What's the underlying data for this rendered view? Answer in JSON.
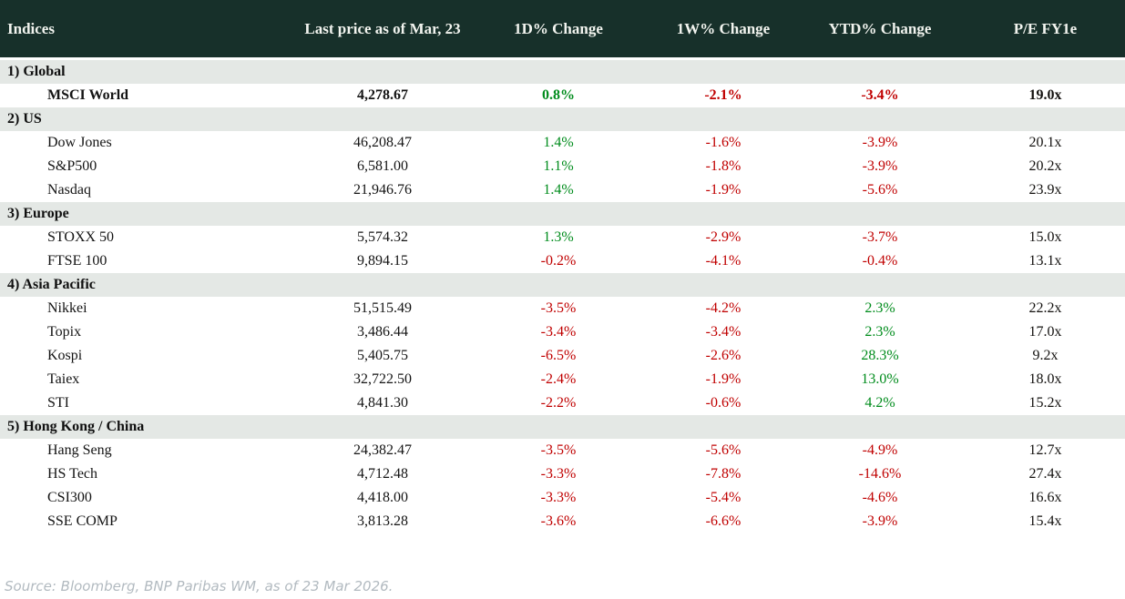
{
  "table": {
    "columns": [
      "Indices",
      "Last price as of Mar, 23",
      "1D% Change",
      "1W% Change",
      "YTD% Change",
      "P/E FY1e"
    ],
    "sections": [
      {
        "label": "1) Global",
        "rows": [
          {
            "name": "MSCI World",
            "price": "4,278.67",
            "d1": "0.8%",
            "w1": "-2.1%",
            "ytd": "-3.4%",
            "pe": "19.0x",
            "bold": true
          }
        ]
      },
      {
        "label": "2) US",
        "rows": [
          {
            "name": "Dow Jones",
            "price": "46,208.47",
            "d1": "1.4%",
            "w1": "-1.6%",
            "ytd": "-3.9%",
            "pe": "20.1x",
            "bold": false
          },
          {
            "name": "S&P500",
            "price": "6,581.00",
            "d1": "1.1%",
            "w1": "-1.8%",
            "ytd": "-3.9%",
            "pe": "20.2x",
            "bold": false
          },
          {
            "name": "Nasdaq",
            "price": "21,946.76",
            "d1": "1.4%",
            "w1": "-1.9%",
            "ytd": "-5.6%",
            "pe": "23.9x",
            "bold": false
          }
        ]
      },
      {
        "label": "3) Europe",
        "rows": [
          {
            "name": "STOXX 50",
            "price": "5,574.32",
            "d1": "1.3%",
            "w1": "-2.9%",
            "ytd": "-3.7%",
            "pe": "15.0x",
            "bold": false
          },
          {
            "name": "FTSE 100",
            "price": "9,894.15",
            "d1": "-0.2%",
            "w1": "-4.1%",
            "ytd": "-0.4%",
            "pe": "13.1x",
            "bold": false
          }
        ]
      },
      {
        "label": "4) Asia Pacific",
        "rows": [
          {
            "name": "Nikkei",
            "price": "51,515.49",
            "d1": "-3.5%",
            "w1": "-4.2%",
            "ytd": "2.3%",
            "pe": "22.2x",
            "bold": false
          },
          {
            "name": "Topix",
            "price": "3,486.44",
            "d1": "-3.4%",
            "w1": "-3.4%",
            "ytd": "2.3%",
            "pe": "17.0x",
            "bold": false
          },
          {
            "name": "Kospi",
            "price": "5,405.75",
            "d1": "-6.5%",
            "w1": "-2.6%",
            "ytd": "28.3%",
            "pe": "9.2x",
            "bold": false
          },
          {
            "name": "Taiex",
            "price": "32,722.50",
            "d1": "-2.4%",
            "w1": "-1.9%",
            "ytd": "13.0%",
            "pe": "18.0x",
            "bold": false
          },
          {
            "name": "STI",
            "price": "4,841.30",
            "d1": "-2.2%",
            "w1": "-0.6%",
            "ytd": "4.2%",
            "pe": "15.2x",
            "bold": false
          }
        ]
      },
      {
        "label": "5) Hong Kong / China",
        "rows": [
          {
            "name": "Hang Seng",
            "price": "24,382.47",
            "d1": "-3.5%",
            "w1": "-5.6%",
            "ytd": "-4.9%",
            "pe": "12.7x",
            "bold": false
          },
          {
            "name": "HS Tech",
            "price": "4,712.48",
            "d1": "-3.3%",
            "w1": "-7.8%",
            "ytd": "-14.6%",
            "pe": "27.4x",
            "bold": false
          },
          {
            "name": "CSI300",
            "price": "4,418.00",
            "d1": "-3.3%",
            "w1": "-5.4%",
            "ytd": "-4.6%",
            "pe": "16.6x",
            "bold": false
          },
          {
            "name": "SSE COMP",
            "price": "3,813.28",
            "d1": "-3.6%",
            "w1": "-6.6%",
            "ytd": "-3.9%",
            "pe": "15.4x",
            "bold": false
          }
        ]
      }
    ]
  },
  "footer": {
    "source": "Source: Bloomberg, BNP Paribas WM, as of 23 Mar 2026."
  },
  "colors": {
    "header_bg": "#17302a",
    "header_text": "#f2f4ef",
    "section_bg": "#e4e8e5",
    "positive": "#008c1c",
    "negative": "#c00000"
  },
  "chart_data": {
    "type": "table",
    "title": "Indices",
    "columns": [
      "Indices",
      "Last price as of Mar, 23",
      "1D% Change",
      "1W% Change",
      "YTD% Change",
      "P/E FY1e"
    ],
    "rows": [
      [
        "1) Global",
        "",
        "",
        "",
        "",
        ""
      ],
      [
        "MSCI World",
        "4,278.67",
        "0.8%",
        "-2.1%",
        "-3.4%",
        "19.0x"
      ],
      [
        "2) US",
        "",
        "",
        "",
        "",
        ""
      ],
      [
        "Dow Jones",
        "46,208.47",
        "1.4%",
        "-1.6%",
        "-3.9%",
        "20.1x"
      ],
      [
        "S&P500",
        "6,581.00",
        "1.1%",
        "-1.8%",
        "-3.9%",
        "20.2x"
      ],
      [
        "Nasdaq",
        "21,946.76",
        "1.4%",
        "-1.9%",
        "-5.6%",
        "23.9x"
      ],
      [
        "3) Europe",
        "",
        "",
        "",
        "",
        ""
      ],
      [
        "STOXX 50",
        "5,574.32",
        "1.3%",
        "-2.9%",
        "-3.7%",
        "15.0x"
      ],
      [
        "FTSE 100",
        "9,894.15",
        "-0.2%",
        "-4.1%",
        "-0.4%",
        "13.1x"
      ],
      [
        "4) Asia Pacific",
        "",
        "",
        "",
        "",
        ""
      ],
      [
        "Nikkei",
        "51,515.49",
        "-3.5%",
        "-4.2%",
        "2.3%",
        "22.2x"
      ],
      [
        "Topix",
        "3,486.44",
        "-3.4%",
        "-3.4%",
        "2.3%",
        "17.0x"
      ],
      [
        "Kospi",
        "5,405.75",
        "-6.5%",
        "-2.6%",
        "28.3%",
        "9.2x"
      ],
      [
        "Taiex",
        "32,722.50",
        "-2.4%",
        "-1.9%",
        "13.0%",
        "18.0x"
      ],
      [
        "STI",
        "4,841.30",
        "-2.2%",
        "-0.6%",
        "4.2%",
        "15.2x"
      ],
      [
        "5) Hong Kong / China",
        "",
        "",
        "",
        "",
        ""
      ],
      [
        "Hang Seng",
        "24,382.47",
        "-3.5%",
        "-5.6%",
        "-4.9%",
        "12.7x"
      ],
      [
        "HS Tech",
        "4,712.48",
        "-3.3%",
        "-7.8%",
        "-14.6%",
        "27.4x"
      ],
      [
        "CSI300",
        "4,418.00",
        "-3.3%",
        "-5.4%",
        "-4.6%",
        "16.6x"
      ],
      [
        "SSE COMP",
        "3,813.28",
        "-3.6%",
        "-6.6%",
        "-3.9%",
        "15.4x"
      ]
    ]
  }
}
